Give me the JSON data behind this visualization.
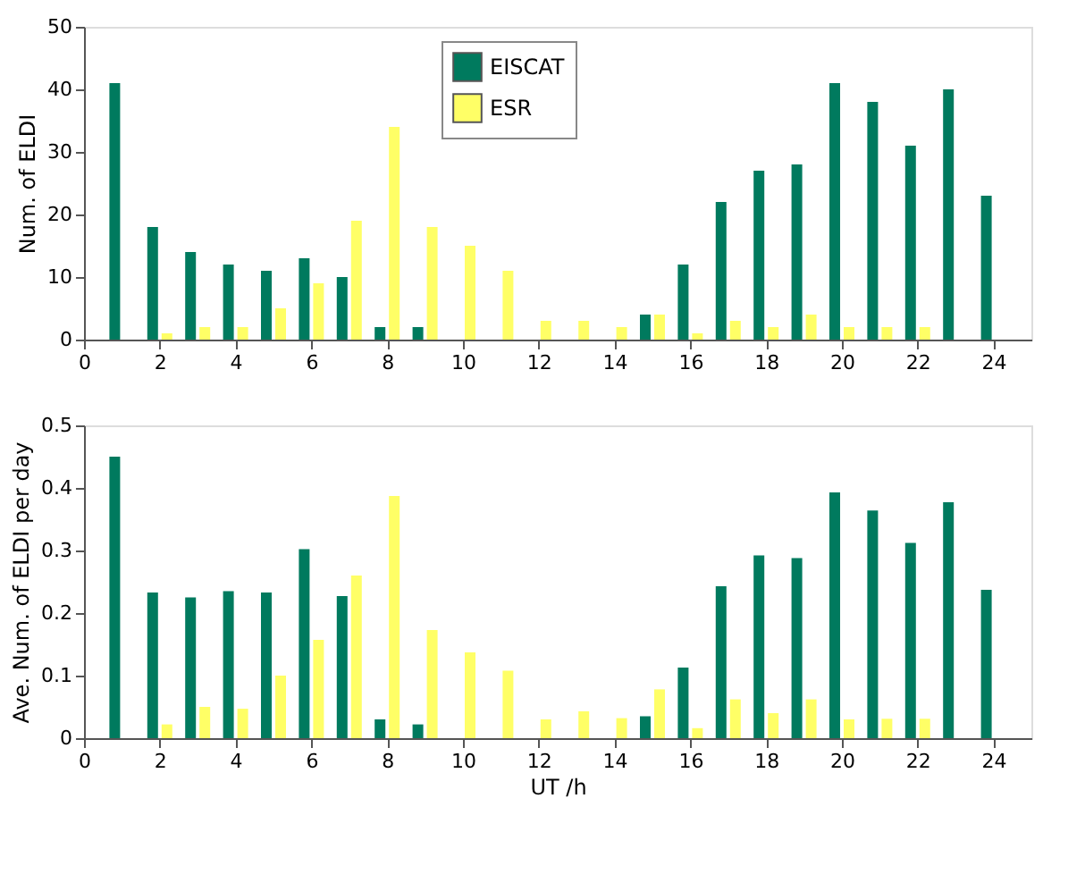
{
  "chart_data": [
    {
      "type": "bar",
      "ylabel": "Num. of ELDI",
      "x": [
        1,
        2,
        3,
        4,
        5,
        6,
        7,
        8,
        9,
        10,
        11,
        12,
        13,
        14,
        15,
        16,
        17,
        18,
        19,
        20,
        21,
        22,
        23,
        24
      ],
      "xlim": [
        0,
        25
      ],
      "xticks": [
        0,
        2,
        4,
        6,
        8,
        10,
        12,
        14,
        16,
        18,
        20,
        22,
        24
      ],
      "ylim": [
        0,
        50
      ],
      "yticks": [
        0,
        10,
        20,
        30,
        40,
        50
      ],
      "grid": false,
      "legend": "top",
      "series": [
        {
          "name": "EISCAT",
          "color": "#007a5e",
          "values": [
            41,
            18,
            14,
            12,
            11,
            13,
            10,
            2,
            2,
            0,
            0,
            0,
            0,
            0,
            4,
            12,
            22,
            27,
            28,
            41,
            38,
            31,
            40,
            23
          ]
        },
        {
          "name": "ESR",
          "color": "#ffff66",
          "values": [
            0,
            1,
            2,
            2,
            5,
            9,
            19,
            34,
            18,
            15,
            11,
            3,
            3,
            2,
            4,
            1,
            3,
            2,
            4,
            2,
            2,
            2,
            0,
            0
          ]
        }
      ]
    },
    {
      "type": "bar",
      "ylabel": "Ave. Num. of ELDI per day",
      "xlabel": "UT /h",
      "x": [
        1,
        2,
        3,
        4,
        5,
        6,
        7,
        8,
        9,
        10,
        11,
        12,
        13,
        14,
        15,
        16,
        17,
        18,
        19,
        20,
        21,
        22,
        23,
        24
      ],
      "xlim": [
        0,
        25
      ],
      "xticks": [
        0,
        2,
        4,
        6,
        8,
        10,
        12,
        14,
        16,
        18,
        20,
        22,
        24
      ],
      "ylim": [
        0,
        0.5
      ],
      "yticks": [
        0,
        0.1,
        0.2,
        0.3,
        0.4,
        0.5
      ],
      "grid": false,
      "legend": false,
      "series": [
        {
          "name": "EISCAT",
          "color": "#007a5e",
          "values": [
            0.45,
            0.233,
            0.225,
            0.235,
            0.233,
            0.302,
            0.227,
            0.03,
            0.022,
            0,
            0,
            0,
            0,
            0,
            0.035,
            0.113,
            0.243,
            0.292,
            0.288,
            0.393,
            0.364,
            0.312,
            0.377,
            0.237
          ]
        },
        {
          "name": "ESR",
          "color": "#ffff66",
          "values": [
            0,
            0.022,
            0.05,
            0.047,
            0.1,
            0.157,
            0.26,
            0.387,
            0.173,
            0.137,
            0.108,
            0.03,
            0.043,
            0.032,
            0.078,
            0.016,
            0.062,
            0.04,
            0.062,
            0.03,
            0.031,
            0.031,
            0,
            0
          ]
        }
      ]
    }
  ]
}
